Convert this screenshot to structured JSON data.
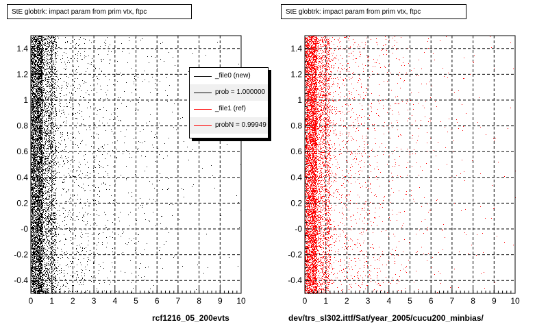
{
  "colors": {
    "new": "#000000",
    "ref": "#ff0000"
  },
  "panels": [
    {
      "title": "StE globtrk: impact param from prim vtx, ftpc",
      "footer": "rcf1216_05_200evts"
    },
    {
      "title": "StE globtrk: impact param from prim vtx, ftpc",
      "footer": "dev/trs_sl302.ittf/Sat/year_2005/cucu200_minbias/"
    }
  ],
  "legend": {
    "items": [
      {
        "label": "_file0 (new)",
        "color": "#000000"
      },
      {
        "label": "prob = 1.000000",
        "color": "#000000"
      },
      {
        "label": "_file1 (ref)",
        "color": "#ff0000"
      },
      {
        "label": "probN = 0.99949",
        "color": "#ff0000"
      }
    ]
  },
  "chart_data": [
    {
      "type": "scatter",
      "title": "StE globtrk: impact param from prim vtx, ftpc",
      "xlabel": "",
      "ylabel": "",
      "xlim": [
        0,
        10
      ],
      "ylim": [
        -0.5,
        1.5
      ],
      "x_ticks": [
        0,
        1,
        2,
        3,
        4,
        5,
        6,
        7,
        8,
        9,
        10
      ],
      "y_ticks": [
        "-0.4",
        "-0.2",
        "-0",
        "0.2",
        "0.4",
        "0.6",
        "0.8",
        "1",
        "1.2",
        "1.4"
      ],
      "grid": true,
      "legend_position": "top-right",
      "series": [
        {
          "name": "_file0 (new)",
          "color": "#000000",
          "distribution": "dense band at x≈0–0.8, density decaying with x, sparse points to x=10, uniform in y"
        }
      ]
    },
    {
      "type": "scatter",
      "title": "StE globtrk: impact param from prim vtx, ftpc",
      "xlabel": "",
      "ylabel": "",
      "xlim": [
        0,
        10
      ],
      "ylim": [
        -0.5,
        1.5
      ],
      "x_ticks": [
        0,
        1,
        2,
        3,
        4,
        5,
        6,
        7,
        8,
        9,
        10
      ],
      "y_ticks": [
        "-0.4",
        "-0.2",
        "-0",
        "0.2",
        "0.4",
        "0.6",
        "0.8",
        "1",
        "1.2",
        "1.4"
      ],
      "grid": true,
      "series": [
        {
          "name": "_file1 (ref)",
          "color": "#ff0000",
          "distribution": "dense band at x≈0–0.8, density decaying with x, sparse points to x=10, uniform in y"
        }
      ]
    }
  ]
}
